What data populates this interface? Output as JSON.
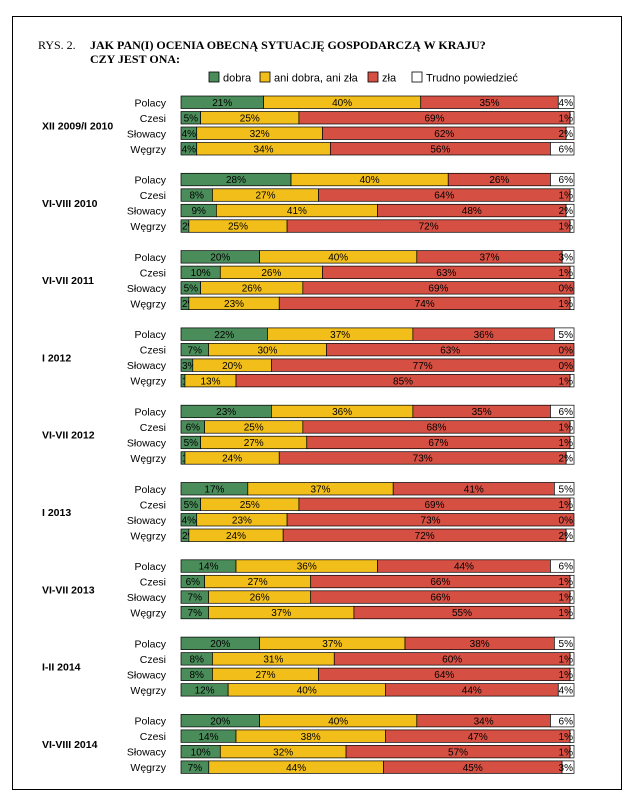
{
  "header": {
    "figure_label": "RYS. 2.",
    "title_line1": "JAK PAN(I) OCENIA OBECNĄ SYTUACJĘ GOSPODARCZĄ W KRAJU?",
    "title_line2": "CZY JEST ONA:"
  },
  "chart_data": {
    "type": "bar",
    "orientation": "horizontal",
    "stacked": true,
    "normalized": true,
    "legend_position": "top",
    "grid": false,
    "series": [
      {
        "name": "dobra",
        "color": "#4a8c5a"
      },
      {
        "name": "ani dobra, ani zła",
        "color": "#f2be1a"
      },
      {
        "name": "zła",
        "color": "#d54f43"
      },
      {
        "name": "Trudno powiedzieć",
        "color": "#ffffff"
      }
    ],
    "groups": [
      {
        "period": "XII 2009/I 2010",
        "rows": [
          {
            "country": "Polacy",
            "values": [
              21,
              40,
              35,
              4
            ]
          },
          {
            "country": "Czesi",
            "values": [
              5,
              25,
              69,
              1
            ]
          },
          {
            "country": "Słowacy",
            "values": [
              4,
              32,
              62,
              2
            ]
          },
          {
            "country": "Węgrzy",
            "values": [
              4,
              34,
              56,
              6
            ]
          }
        ]
      },
      {
        "period": "VI-VIII 2010",
        "rows": [
          {
            "country": "Polacy",
            "values": [
              28,
              40,
              26,
              6
            ]
          },
          {
            "country": "Czesi",
            "values": [
              8,
              27,
              64,
              1
            ]
          },
          {
            "country": "Słowacy",
            "values": [
              9,
              41,
              48,
              2
            ]
          },
          {
            "country": "Węgrzy",
            "values": [
              2,
              25,
              72,
              1
            ]
          }
        ]
      },
      {
        "period": "VI-VII 2011",
        "rows": [
          {
            "country": "Polacy",
            "values": [
              20,
              40,
              37,
              3
            ]
          },
          {
            "country": "Czesi",
            "values": [
              10,
              26,
              63,
              1
            ]
          },
          {
            "country": "Słowacy",
            "values": [
              5,
              26,
              69,
              0
            ]
          },
          {
            "country": "Węgrzy",
            "values": [
              2,
              23,
              74,
              1
            ]
          }
        ]
      },
      {
        "period": "I 2012",
        "rows": [
          {
            "country": "Polacy",
            "values": [
              22,
              37,
              36,
              5
            ]
          },
          {
            "country": "Czesi",
            "values": [
              7,
              30,
              63,
              0
            ]
          },
          {
            "country": "Słowacy",
            "values": [
              3,
              20,
              77,
              0
            ]
          },
          {
            "country": "Węgrzy",
            "values": [
              1,
              13,
              85,
              1
            ]
          }
        ]
      },
      {
        "period": "VI-VII 2012",
        "rows": [
          {
            "country": "Polacy",
            "values": [
              23,
              36,
              35,
              6
            ]
          },
          {
            "country": "Czesi",
            "values": [
              6,
              25,
              68,
              1
            ]
          },
          {
            "country": "Słowacy",
            "values": [
              5,
              27,
              67,
              1
            ]
          },
          {
            "country": "Węgrzy",
            "values": [
              1,
              24,
              73,
              2
            ]
          }
        ]
      },
      {
        "period": "I 2013",
        "rows": [
          {
            "country": "Polacy",
            "values": [
              17,
              37,
              41,
              5
            ]
          },
          {
            "country": "Czesi",
            "values": [
              5,
              25,
              69,
              1
            ]
          },
          {
            "country": "Słowacy",
            "values": [
              4,
              23,
              73,
              0
            ]
          },
          {
            "country": "Węgrzy",
            "values": [
              2,
              24,
              72,
              2
            ]
          }
        ]
      },
      {
        "period": "VI-VII 2013",
        "rows": [
          {
            "country": "Polacy",
            "values": [
              14,
              36,
              44,
              6
            ]
          },
          {
            "country": "Czesi",
            "values": [
              6,
              27,
              66,
              1
            ]
          },
          {
            "country": "Słowacy",
            "values": [
              7,
              26,
              66,
              1
            ]
          },
          {
            "country": "Węgrzy",
            "values": [
              7,
              37,
              55,
              1
            ]
          }
        ]
      },
      {
        "period": "I-II 2014",
        "rows": [
          {
            "country": "Polacy",
            "values": [
              20,
              37,
              38,
              5
            ]
          },
          {
            "country": "Czesi",
            "values": [
              8,
              31,
              60,
              1
            ]
          },
          {
            "country": "Słowacy",
            "values": [
              8,
              27,
              64,
              1
            ]
          },
          {
            "country": "Węgrzy",
            "values": [
              12,
              40,
              44,
              4
            ]
          }
        ]
      },
      {
        "period": "VI-VIII 2014",
        "rows": [
          {
            "country": "Polacy",
            "values": [
              20,
              40,
              34,
              6
            ]
          },
          {
            "country": "Czesi",
            "values": [
              14,
              38,
              47,
              1
            ]
          },
          {
            "country": "Słowacy",
            "values": [
              10,
              32,
              57,
              1
            ]
          },
          {
            "country": "Węgrzy",
            "values": [
              7,
              44,
              45,
              3
            ]
          }
        ]
      }
    ]
  }
}
